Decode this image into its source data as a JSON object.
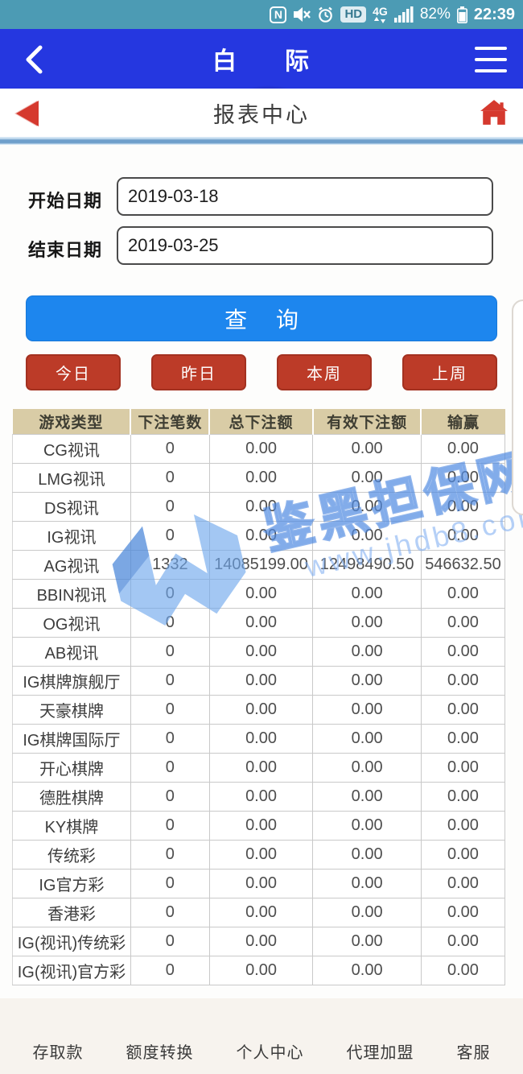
{
  "status_bar": {
    "nfc_label": "N",
    "hd_label": "HD",
    "network_label": "4G",
    "battery_percent": "82%",
    "time": "22:39"
  },
  "nav_bar": {
    "title_left": "白",
    "title_right": "际"
  },
  "sub_header": {
    "title": "报表中心"
  },
  "form": {
    "start_label": "开始日期",
    "start_value": "2019-03-18",
    "end_label": "结束日期",
    "end_value": "2019-03-25",
    "query_label": "查 询",
    "quick_buttons": [
      "今日",
      "昨日",
      "本周",
      "上周"
    ]
  },
  "table": {
    "headers": [
      "游戏类型",
      "下注笔数",
      "总下注额",
      "有效下注额",
      "输赢"
    ],
    "rows": [
      [
        "CG视讯",
        "0",
        "0.00",
        "0.00",
        "0.00"
      ],
      [
        "LMG视讯",
        "0",
        "0.00",
        "0.00",
        "0.00"
      ],
      [
        "DS视讯",
        "0",
        "0.00",
        "0.00",
        "0.00"
      ],
      [
        "IG视讯",
        "0",
        "0.00",
        "0.00",
        "0.00"
      ],
      [
        "AG视讯",
        "1332",
        "14085199.00",
        "12498490.50",
        "546632.50"
      ],
      [
        "BBIN视讯",
        "0",
        "0.00",
        "0.00",
        "0.00"
      ],
      [
        "OG视讯",
        "0",
        "0.00",
        "0.00",
        "0.00"
      ],
      [
        "AB视讯",
        "0",
        "0.00",
        "0.00",
        "0.00"
      ],
      [
        "IG棋牌旗舰厅",
        "0",
        "0.00",
        "0.00",
        "0.00"
      ],
      [
        "天豪棋牌",
        "0",
        "0.00",
        "0.00",
        "0.00"
      ],
      [
        "IG棋牌国际厅",
        "0",
        "0.00",
        "0.00",
        "0.00"
      ],
      [
        "开心棋牌",
        "0",
        "0.00",
        "0.00",
        "0.00"
      ],
      [
        "德胜棋牌",
        "0",
        "0.00",
        "0.00",
        "0.00"
      ],
      [
        "KY棋牌",
        "0",
        "0.00",
        "0.00",
        "0.00"
      ],
      [
        "传统彩",
        "0",
        "0.00",
        "0.00",
        "0.00"
      ],
      [
        "IG官方彩",
        "0",
        "0.00",
        "0.00",
        "0.00"
      ],
      [
        "香港彩",
        "0",
        "0.00",
        "0.00",
        "0.00"
      ],
      [
        "IG(视讯)传统彩",
        "0",
        "0.00",
        "0.00",
        "0.00"
      ],
      [
        "IG(视讯)官方彩",
        "0",
        "0.00",
        "0.00",
        "0.00"
      ]
    ]
  },
  "watermark": {
    "line1": "鉴黑担保网",
    "line2": "www.jhdb8.com"
  },
  "footer": {
    "items": [
      "存取款",
      "额度转换",
      "个人中心",
      "代理加盟",
      "客服"
    ]
  },
  "colors": {
    "status_bar_bg": "#4c9bb4",
    "nav_bar_bg": "#2537e0",
    "accent_red": "#bc3b28",
    "query_blue": "#1d86ee",
    "table_header_bg": "#d9cca6",
    "divider_blue": "#6f9fcb",
    "watermark_blue": "#4a86e0",
    "footer_bg": "#f7f3ee"
  }
}
